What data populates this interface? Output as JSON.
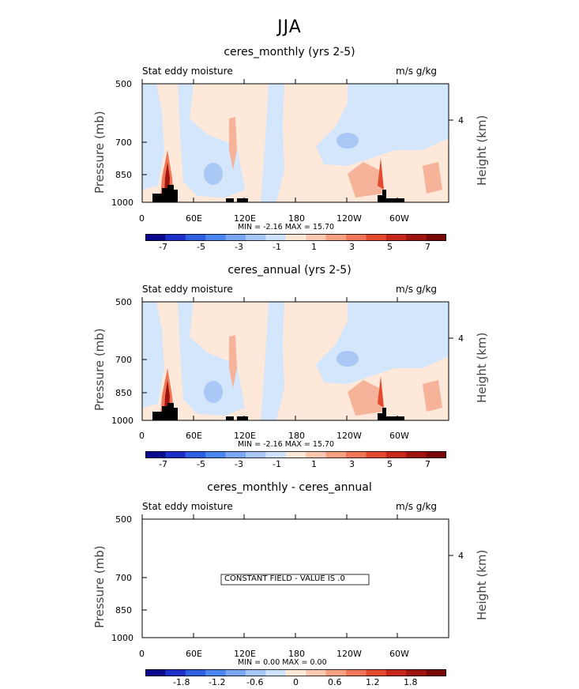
{
  "suptitle": "JJA",
  "panels": [
    {
      "title": "ceres_monthly (yrs 2-5)",
      "left_label": "Stat eddy moisture",
      "right_label": "m/s g/kg",
      "ylabel": "Pressure (mb)",
      "y2label": "Height (km)",
      "minmax": "MIN =   -2.16   MAX =   15.70"
    },
    {
      "title": "ceres_annual (yrs 2-5)",
      "left_label": "Stat eddy moisture",
      "right_label": "m/s g/kg",
      "ylabel": "Pressure (mb)",
      "y2label": "Height (km)",
      "minmax": "MIN =   -2.16   MAX =   15.70"
    },
    {
      "title": "ceres_monthly - ceres_annual",
      "left_label": "Stat eddy moisture",
      "right_label": "m/s g/kg",
      "ylabel": "Pressure (mb)",
      "y2label": "Height (km)",
      "minmax": "MIN =    0.00   MAX =    0.00",
      "annotation": "CONSTANT FIELD - VALUE IS .0"
    }
  ],
  "chart_data": [
    {
      "type": "heatmap",
      "title": "ceres_monthly (yrs 2-5)",
      "xlabel": "",
      "ylabel": "Pressure (mb)",
      "y2label": "Height (km)",
      "xlim": [
        0,
        360
      ],
      "x_ticks": [
        "0",
        "60E",
        "120E",
        "180",
        "120W",
        "60W"
      ],
      "y_ticks": [
        "500",
        "700",
        "850",
        "1000"
      ],
      "y2_ticks": [
        "4"
      ],
      "colorbar_ticks": [
        "-7",
        "-5",
        "-3",
        "-1",
        "1",
        "3",
        "5",
        "7"
      ],
      "min": -2.16,
      "max": 15.7
    },
    {
      "type": "heatmap",
      "title": "ceres_annual (yrs 2-5)",
      "xlabel": "",
      "ylabel": "Pressure (mb)",
      "y2label": "Height (km)",
      "xlim": [
        0,
        360
      ],
      "x_ticks": [
        "0",
        "60E",
        "120E",
        "180",
        "120W",
        "60W"
      ],
      "y_ticks": [
        "500",
        "700",
        "850",
        "1000"
      ],
      "y2_ticks": [
        "4"
      ],
      "colorbar_ticks": [
        "-7",
        "-5",
        "-3",
        "-1",
        "1",
        "3",
        "5",
        "7"
      ],
      "min": -2.16,
      "max": 15.7
    },
    {
      "type": "heatmap",
      "title": "ceres_monthly - ceres_annual",
      "xlabel": "",
      "ylabel": "Pressure (mb)",
      "y2label": "Height (km)",
      "xlim": [
        0,
        360
      ],
      "x_ticks": [
        "0",
        "60E",
        "120E",
        "180",
        "120W",
        "60W"
      ],
      "y_ticks": [
        "500",
        "700",
        "850",
        "1000"
      ],
      "y2_ticks": [
        "4"
      ],
      "colorbar_ticks": [
        "-1.8",
        "-1.2",
        "-0.6",
        "0",
        "0.6",
        "1.2",
        "1.8"
      ],
      "min": 0.0,
      "max": 0.0
    }
  ],
  "colors": {
    "colorbar": [
      "#0a0a8c",
      "#1e2ec8",
      "#2e5fe0",
      "#4a86ee",
      "#7aa6f2",
      "#a8c6f6",
      "#cfe2fb",
      "#fde8d8",
      "#fbc7b0",
      "#f6a082",
      "#f07658",
      "#e44a2e",
      "#c8281c",
      "#a01410",
      "#780808"
    ],
    "light_blue": "#d3e6fb",
    "light_peach": "#fde8d9",
    "mid_blue": "#a9c8f6",
    "salmon": "#f6b39a",
    "terrain": "#000000"
  }
}
